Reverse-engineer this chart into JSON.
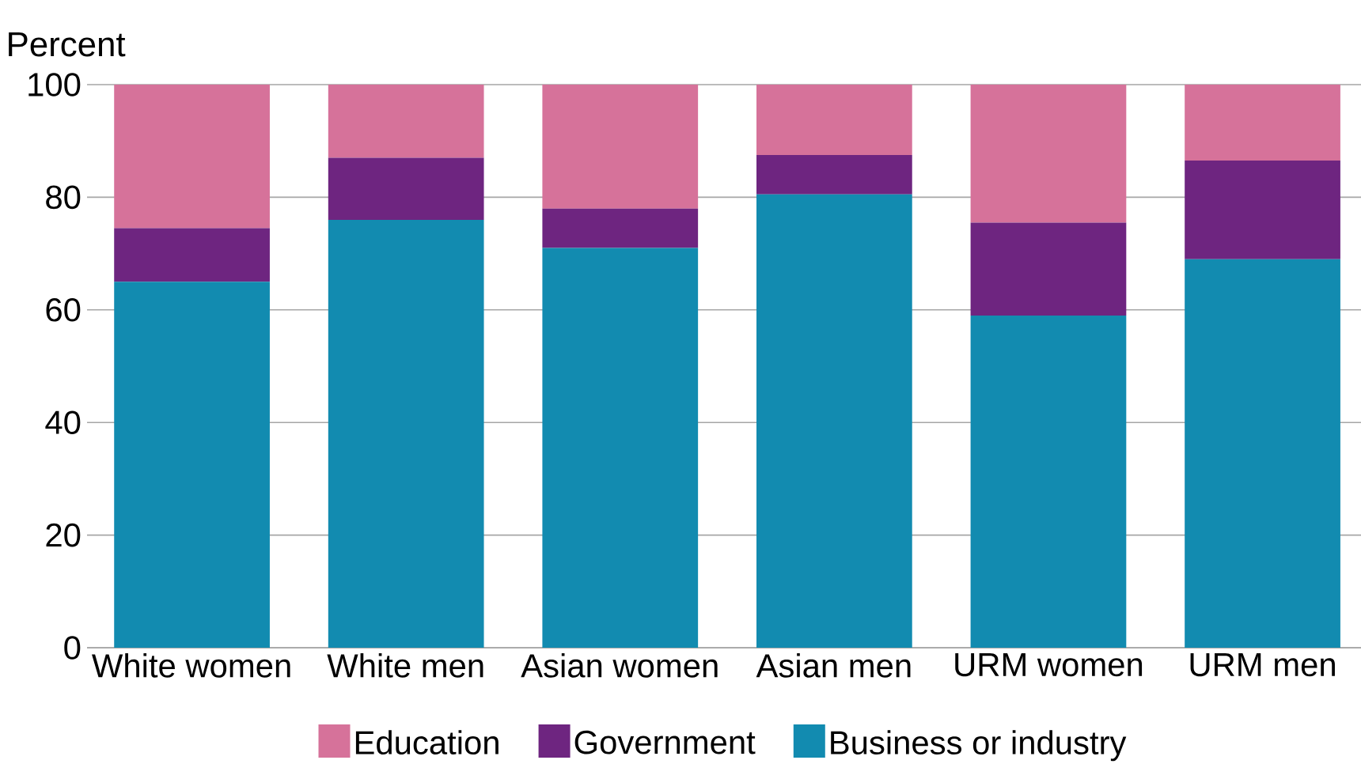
{
  "chart_data": {
    "type": "bar",
    "stacked": true,
    "ylabel": "Percent",
    "categories": [
      "White women",
      "White men",
      "Asian women",
      "Asian men",
      "URM women",
      "URM men"
    ],
    "series": [
      {
        "name": "Business or industry",
        "color": "#128bb0",
        "values": [
          65,
          76,
          71,
          80.5,
          59,
          69
        ]
      },
      {
        "name": "Government",
        "color": "#6e2580",
        "values": [
          9.5,
          11,
          7,
          7,
          16.5,
          17.5
        ]
      },
      {
        "name": "Education",
        "color": "#d6729a",
        "values": [
          25.5,
          13,
          22,
          12.5,
          24.5,
          13.5
        ]
      }
    ],
    "ylim": [
      0,
      100
    ],
    "yticks": [
      0,
      20,
      40,
      60,
      80,
      100
    ],
    "grid": "y",
    "legend": "bottom"
  }
}
